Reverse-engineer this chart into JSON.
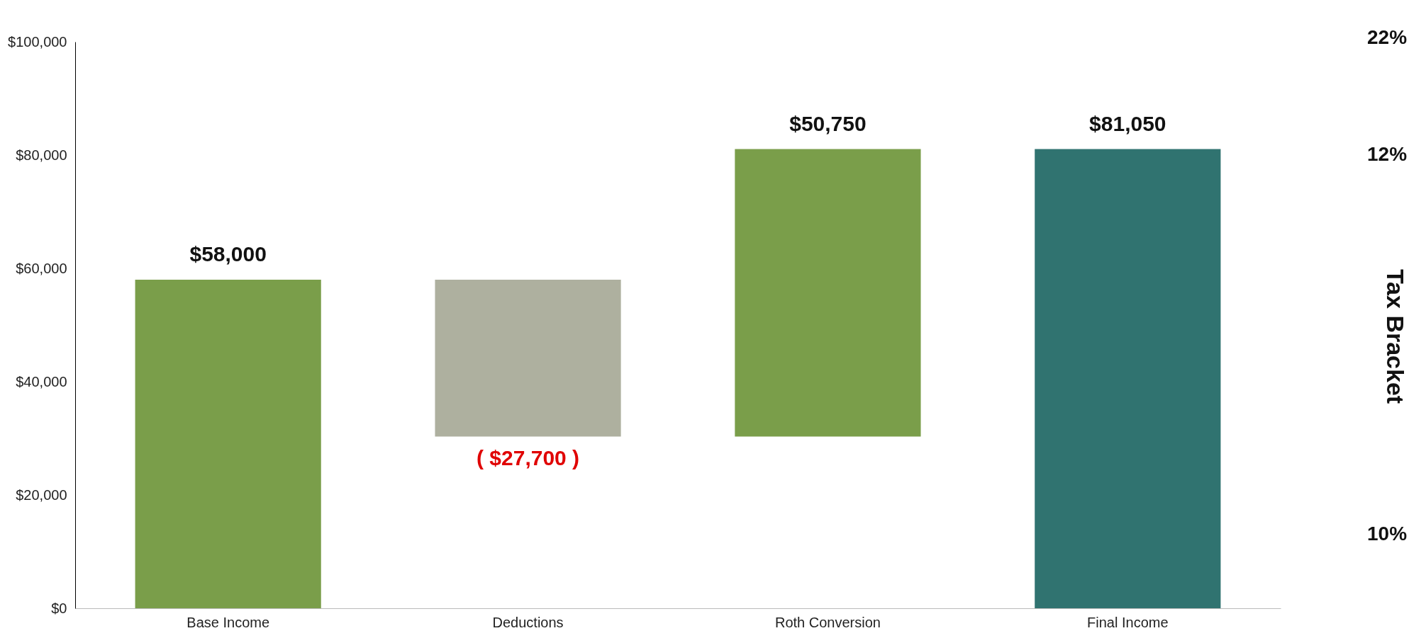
{
  "chart_data": {
    "type": "bar",
    "categories": [
      "Base Income",
      "Deductions",
      "Roth Conversion",
      "Final Income"
    ],
    "values": [
      58000,
      -27700,
      50750,
      81050
    ],
    "base": [
      0,
      58000,
      30300,
      0
    ],
    "colors": [
      "#7a9e4a",
      "#aeb09f",
      "#7a9e4a",
      "#307370"
    ],
    "value_labels": [
      "$58,000",
      "( $27,700 )",
      "$50,750",
      "$81,050"
    ],
    "ylim": [
      0,
      100000
    ],
    "yticks": [
      {
        "value": 0,
        "label": "$0"
      },
      {
        "value": 20000,
        "label": "$20,000"
      },
      {
        "value": 40000,
        "label": "$40,000"
      },
      {
        "value": 60000,
        "label": "$60,000"
      },
      {
        "value": 80000,
        "label": "$80,000"
      },
      {
        "value": 100000,
        "label": "$100,000"
      }
    ],
    "y2label": "Tax Bracket",
    "annotations": [
      "22%",
      "12%",
      "10%"
    ],
    "grid": false
  }
}
